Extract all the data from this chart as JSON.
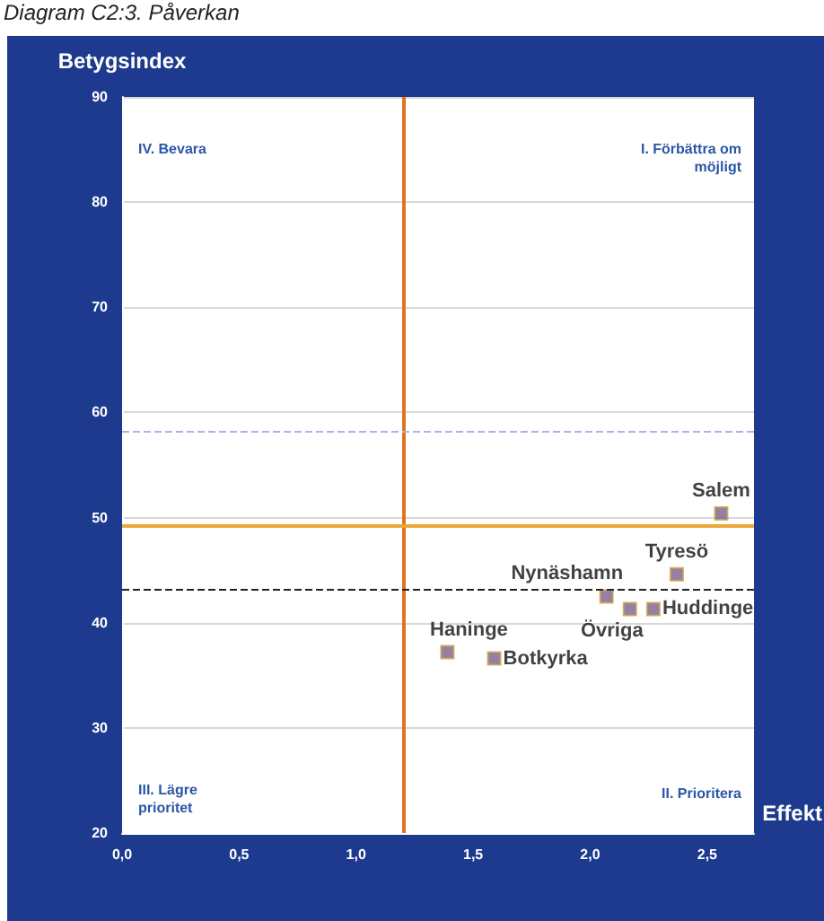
{
  "chart_data": {
    "type": "scatter",
    "title": "Diagram C2:3. Påverkan",
    "xlabel": "Effekt",
    "ylabel": "Betygsindex",
    "x": [
      2.56,
      2.37,
      2.07,
      2.17,
      2.27,
      1.39,
      1.59
    ],
    "series": [
      {
        "color": "#7a5f8f",
        "values": [
          50.4,
          44.6,
          42.5,
          41.3,
          41.3,
          37.2,
          36.6
        ]
      }
    ],
    "marker": "square",
    "xlim": [
      0,
      2.7
    ],
    "xticks": [
      {
        "value": 0,
        "label": "0,0"
      },
      {
        "value": 0.5,
        "label": "0,5"
      },
      {
        "value": 1,
        "label": "1,0"
      },
      {
        "value": 1.5,
        "label": "1,5"
      },
      {
        "value": 2,
        "label": "2,0"
      },
      {
        "value": 2.5,
        "label": "2,5"
      }
    ],
    "ylim": [
      20,
      90
    ],
    "yticks": [
      20,
      30,
      40,
      50,
      60,
      70,
      80,
      90
    ],
    "grid": "y",
    "ref_lines": [
      {
        "axis": "x",
        "value": 1.2,
        "color": "#e0741f",
        "line_style": "solid"
      },
      {
        "axis": "y",
        "value": 49.2,
        "color": "#eba93a",
        "line_style": "solid"
      },
      {
        "axis": "y",
        "value": 43.2,
        "color": "#222222",
        "line_style": "dashed"
      },
      {
        "axis": "y",
        "value": 58.2,
        "color": "#a9b4ee",
        "line_style": "dashed"
      }
    ],
    "annotations": [
      "IV. Bevara",
      "I. Förbättra om möjligt",
      "III. Lägre prioritet",
      "II. Prioritera",
      {
        "text": "Salem",
        "x": 2.56,
        "y": 50.4
      },
      {
        "text": "Tyresö",
        "x": 2.37,
        "y": 44.6
      },
      {
        "text": "Nynäshamn",
        "x": 2.07,
        "y": 42.5
      },
      {
        "text": "Övriga",
        "x": 2.17,
        "y": 41.3
      },
      {
        "text": "Huddinge",
        "x": 2.27,
        "y": 41.3
      },
      {
        "text": "Haninge",
        "x": 1.39,
        "y": 37.2
      },
      {
        "text": "Botkyrka",
        "x": 1.59,
        "y": 36.6
      }
    ]
  }
}
